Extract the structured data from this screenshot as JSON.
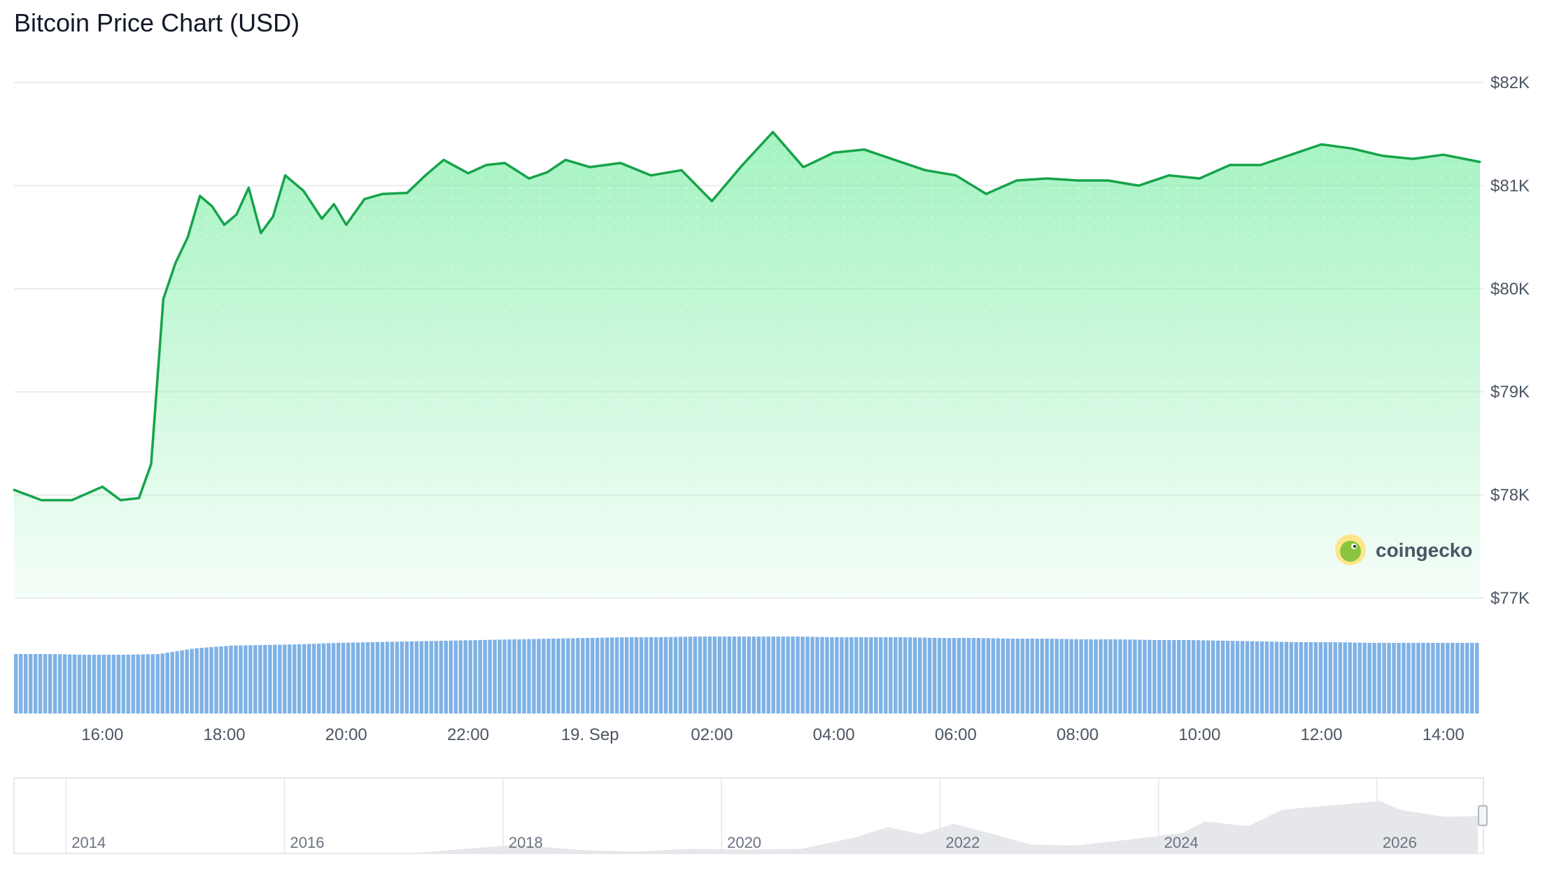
{
  "title": "Bitcoin Price Chart (USD)",
  "logo": {
    "text": "coingecko",
    "icon": "gecko-icon"
  },
  "colors": {
    "line": "#16a34a",
    "fill_top": "#86efac",
    "volume": "#7fb2e5",
    "navigator": "#e5e7eb"
  },
  "chart_data": [
    {
      "type": "area",
      "title": "Bitcoin Price Chart (USD)",
      "xlabel": "",
      "ylabel": "",
      "x_unit": "hours",
      "xlim": [
        14.55,
        14.68
      ],
      "x_ticks": [
        16,
        18,
        20,
        22,
        24,
        26,
        28,
        30,
        32,
        34,
        36,
        38
      ],
      "x_tick_labels": [
        "16:00",
        "18:00",
        "20:00",
        "22:00",
        "19. Sep",
        "02:00",
        "04:00",
        "06:00",
        "08:00",
        "10:00",
        "12:00",
        "14:00"
      ],
      "ylim": [
        77000,
        82000
      ],
      "y_ticks": [
        77000,
        78000,
        79000,
        80000,
        81000,
        82000
      ],
      "y_tick_labels": [
        "$77K",
        "$78K",
        "$79K",
        "$80K",
        "$81K",
        "$82K"
      ],
      "grid": true,
      "series": [
        {
          "x": [
            14.55,
            15.0,
            15.5,
            16.0,
            16.3,
            16.6,
            16.8,
            17.0,
            17.2,
            17.4,
            17.6,
            17.8,
            18.0,
            18.2,
            18.4,
            18.6,
            18.8,
            19.0,
            19.3,
            19.6,
            19.8,
            20.0,
            20.3,
            20.6,
            21.0,
            21.3,
            21.6,
            22.0,
            22.3,
            22.6,
            23.0,
            23.3,
            23.6,
            24.0,
            24.5,
            25.0,
            25.5,
            26.0,
            26.5,
            27.0,
            27.5,
            28.0,
            28.5,
            29.0,
            29.5,
            30.0,
            30.5,
            31.0,
            31.5,
            32.0,
            32.5,
            33.0,
            33.5,
            34.0,
            34.5,
            35.0,
            35.5,
            36.0,
            36.5,
            37.0,
            37.5,
            38.0,
            38.6
          ],
          "values": [
            78050,
            77950,
            77950,
            78080,
            77950,
            77970,
            78300,
            79900,
            80250,
            80500,
            80900,
            80800,
            80620,
            80720,
            80980,
            80540,
            80700,
            81100,
            80950,
            80680,
            80820,
            80620,
            80870,
            80920,
            80930,
            81100,
            81250,
            81120,
            81200,
            81220,
            81070,
            81130,
            81250,
            81180,
            81220,
            81100,
            81150,
            80850,
            81200,
            81520,
            81180,
            81320,
            81350,
            81250,
            81150,
            81100,
            80920,
            81050,
            81070,
            81050,
            81050,
            81000,
            81100,
            81070,
            81200,
            81200,
            81300,
            81400,
            81360,
            81290,
            81260,
            81300,
            81230
          ],
          "name": ""
        }
      ]
    },
    {
      "type": "bar",
      "title": "",
      "xlabel": "",
      "ylabel": "",
      "note": "volume bars below price chart (no printed axis)",
      "x_range": [
        14.55,
        38.6
      ],
      "values_profile": [
        0.5,
        0.5,
        0.49,
        0.49,
        0.5,
        0.58,
        0.62,
        0.63,
        0.64,
        0.66,
        0.67,
        0.68,
        0.69,
        0.7,
        0.71,
        0.72,
        0.73,
        0.74,
        0.74,
        0.75,
        0.75,
        0.75,
        0.75,
        0.74,
        0.74,
        0.74,
        0.73,
        0.73,
        0.72,
        0.72,
        0.71,
        0.71,
        0.7,
        0.7,
        0.69,
        0.68,
        0.67,
        0.67,
        0.66,
        0.66,
        0.66,
        0.66
      ]
    },
    {
      "type": "area",
      "title": "",
      "xlabel": "",
      "ylabel": "",
      "note": "navigator of full price history",
      "x_tick_labels": [
        "2014",
        "2016",
        "2018",
        "2020",
        "2022",
        "2024",
        "2026"
      ],
      "x_ticks": [
        2014,
        2016,
        2018,
        2020,
        2022,
        2024,
        2026
      ],
      "xlim": [
        2013.3,
        2026.75
      ],
      "series": [
        {
          "x": [
            2013.3,
            2014.0,
            2015.0,
            2016.0,
            2017.0,
            2017.9,
            2018.5,
            2019.0,
            2019.5,
            2020.0,
            2020.5,
            2021.0,
            2021.3,
            2021.6,
            2021.9,
            2022.3,
            2022.6,
            2023.0,
            2023.5,
            2024.0,
            2024.2,
            2024.6,
            2024.9,
            2025.1,
            2025.5,
            2025.8,
            2026.0,
            2026.4,
            2026.7
          ],
          "values": [
            0.1,
            0.5,
            0.3,
            0.5,
            1.5,
            19,
            7,
            4,
            10,
            8,
            10,
            35,
            58,
            42,
            65,
            40,
            20,
            17,
            30,
            45,
            70,
            60,
            95,
            100,
            108,
            115,
            95,
            80,
            82
          ]
        }
      ]
    }
  ]
}
